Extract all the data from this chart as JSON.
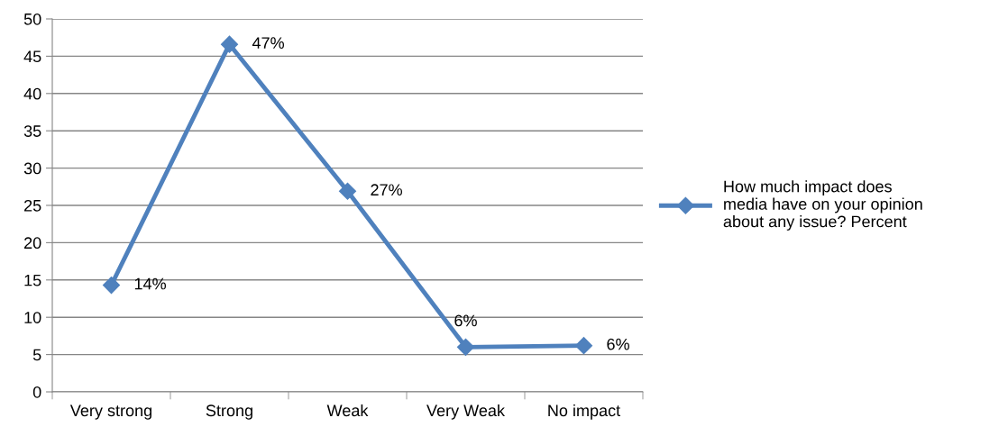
{
  "chart_data": {
    "type": "line",
    "categories": [
      "Very strong",
      "Strong",
      "Weak",
      "Very Weak",
      "No impact"
    ],
    "series": [
      {
        "name": "How much impact does\nmedia have on your opinion\nabout any issue? Percent",
        "color": "#4f81bd",
        "values": [
          14.3,
          46.6,
          26.9,
          6.0,
          6.2
        ],
        "value_labels": [
          "14%",
          "47%",
          "27%",
          "6%",
          "6%"
        ]
      }
    ],
    "ylim": [
      0,
      50
    ],
    "yticks": [
      0,
      5,
      10,
      15,
      20,
      25,
      30,
      35,
      40,
      45,
      50
    ],
    "grid": "y",
    "legend": "right",
    "marker": "diamond",
    "line_style": "solid"
  }
}
